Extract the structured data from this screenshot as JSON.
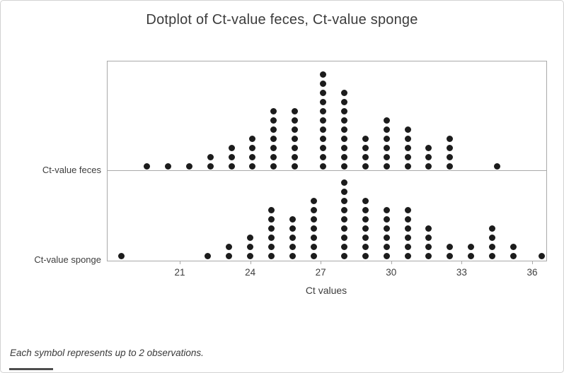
{
  "colors": {
    "dot": "#1c1c1c",
    "axis_line": "#a9a9a9",
    "text": "#3d3d3d",
    "frame_border": "#d2d2d2"
  },
  "chart_data": {
    "type": "dotplot",
    "title": "Dotplot of Ct-value feces, Ct-value sponge",
    "xlabel": "Ct values",
    "x_ticks": [
      21,
      24,
      27,
      30,
      33,
      36
    ],
    "x_range": [
      17.9,
      36.7
    ],
    "grid": false,
    "legend": "none",
    "panels_share_x": true,
    "footnote": "Each symbol represents up to 2 observations.",
    "max_obs_per_symbol": 2,
    "dot_color": "#1c1c1c",
    "series": [
      {
        "name": "Ct-value feces",
        "columns": [
          {
            "x": 19.6,
            "count": 1
          },
          {
            "x": 20.5,
            "count": 1
          },
          {
            "x": 21.4,
            "count": 1
          },
          {
            "x": 22.3,
            "count": 2
          },
          {
            "x": 23.2,
            "count": 3
          },
          {
            "x": 24.1,
            "count": 4
          },
          {
            "x": 25.0,
            "count": 7
          },
          {
            "x": 25.9,
            "count": 7
          },
          {
            "x": 27.1,
            "count": 11
          },
          {
            "x": 28.0,
            "count": 9
          },
          {
            "x": 28.9,
            "count": 4
          },
          {
            "x": 29.8,
            "count": 6
          },
          {
            "x": 30.7,
            "count": 5
          },
          {
            "x": 31.6,
            "count": 3
          },
          {
            "x": 32.5,
            "count": 4
          },
          {
            "x": 34.5,
            "count": 1
          }
        ]
      },
      {
        "name": "Ct-value sponge",
        "columns": [
          {
            "x": 18.5,
            "count": 1
          },
          {
            "x": 22.2,
            "count": 1
          },
          {
            "x": 23.1,
            "count": 2
          },
          {
            "x": 24.0,
            "count": 3
          },
          {
            "x": 24.9,
            "count": 6
          },
          {
            "x": 25.8,
            "count": 5
          },
          {
            "x": 26.7,
            "count": 7
          },
          {
            "x": 28.0,
            "count": 9
          },
          {
            "x": 28.9,
            "count": 7
          },
          {
            "x": 29.8,
            "count": 6
          },
          {
            "x": 30.7,
            "count": 6
          },
          {
            "x": 31.6,
            "count": 4
          },
          {
            "x": 32.5,
            "count": 2
          },
          {
            "x": 33.4,
            "count": 2
          },
          {
            "x": 34.3,
            "count": 4
          },
          {
            "x": 35.2,
            "count": 2
          },
          {
            "x": 36.4,
            "count": 1
          }
        ]
      }
    ]
  }
}
